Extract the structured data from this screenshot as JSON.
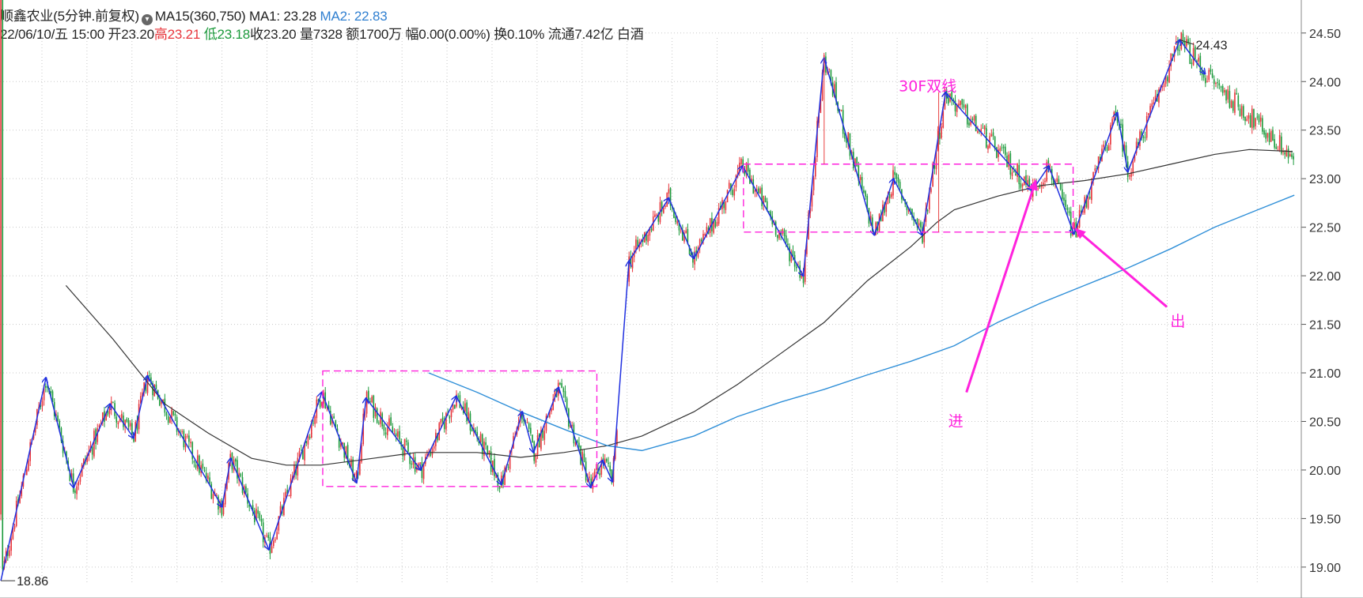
{
  "header": {
    "stock_name": "顺鑫农业",
    "period": "(5分钟.前复权)",
    "ma15_label": "MA15(360,750)",
    "ma1_label": "MA1: 23.28",
    "ma2_label": "MA2: 22.83",
    "date": "22/06/10/五 15:00",
    "open": "开23.20",
    "high": "高23.21",
    "low": "低23.18",
    "close": "收23.20",
    "volume": "量7328",
    "amount": "额1700万",
    "range": "幅0.00(0.00%)",
    "turnover": "换0.10%",
    "float_cap": "流通7.42亿",
    "sector": "白酒"
  },
  "colors": {
    "up": "#e8333a",
    "down": "#1b9a3b",
    "ma1": "#333333",
    "ma2": "#2f8fd8",
    "zigzag": "#2030e0",
    "annotation": "#ff22dd",
    "grid": "#c8c8c8"
  },
  "chart_data": {
    "type": "candlestick",
    "y_axis": {
      "side": "right",
      "ticks": [
        "24.50",
        "24.00",
        "23.50",
        "23.00",
        "22.50",
        "22.00",
        "21.50",
        "21.00",
        "20.50",
        "20.00",
        "19.50",
        "19.00"
      ],
      "range": [
        18.82,
        24.84
      ],
      "grid": "dotted"
    },
    "extremes": [
      {
        "label": "24.43",
        "value": 24.43,
        "bar": 1360
      },
      {
        "label": "18.86",
        "value": 18.86,
        "bar": 1
      }
    ],
    "zigzag": [
      [
        1,
        18.86
      ],
      [
        53,
        20.95
      ],
      [
        85,
        19.82
      ],
      [
        127,
        20.68
      ],
      [
        154,
        20.33
      ],
      [
        170,
        20.97
      ],
      [
        256,
        19.62
      ],
      [
        266,
        20.12
      ],
      [
        310,
        19.18
      ],
      [
        371,
        20.8
      ],
      [
        411,
        19.87
      ],
      [
        422,
        20.74
      ],
      [
        485,
        20.0
      ],
      [
        526,
        20.76
      ],
      [
        578,
        19.85
      ],
      [
        602,
        20.6
      ],
      [
        615,
        20.18
      ],
      [
        644,
        20.85
      ],
      [
        681,
        19.82
      ],
      [
        695,
        20.1
      ],
      [
        706,
        19.88
      ],
      [
        725,
        22.15
      ],
      [
        771,
        22.8
      ],
      [
        800,
        22.18
      ],
      [
        856,
        23.13
      ],
      [
        926,
        22.0
      ],
      [
        950,
        24.24
      ],
      [
        1008,
        22.42
      ],
      [
        1030,
        23.0
      ],
      [
        1063,
        22.42
      ],
      [
        1090,
        23.89
      ],
      [
        1190,
        22.88
      ],
      [
        1209,
        23.13
      ],
      [
        1238,
        22.43
      ],
      [
        1288,
        23.68
      ],
      [
        1300,
        23.07
      ],
      [
        1360,
        24.43
      ],
      [
        1389,
        24.08
      ]
    ],
    "ma1": [
      [
        76,
        21.9
      ],
      [
        130,
        21.35
      ],
      [
        190,
        20.68
      ],
      [
        240,
        20.38
      ],
      [
        290,
        20.12
      ],
      [
        330,
        20.05
      ],
      [
        370,
        20.05
      ],
      [
        430,
        20.12
      ],
      [
        480,
        20.18
      ],
      [
        550,
        20.18
      ],
      [
        600,
        20.13
      ],
      [
        650,
        20.18
      ],
      [
        700,
        20.25
      ],
      [
        740,
        20.35
      ],
      [
        800,
        20.6
      ],
      [
        850,
        20.88
      ],
      [
        900,
        21.2
      ],
      [
        950,
        21.52
      ],
      [
        1000,
        21.95
      ],
      [
        1050,
        22.3
      ],
      [
        1080,
        22.55
      ],
      [
        1100,
        22.68
      ],
      [
        1150,
        22.82
      ],
      [
        1200,
        22.93
      ],
      [
        1250,
        22.98
      ],
      [
        1300,
        23.05
      ],
      [
        1350,
        23.15
      ],
      [
        1400,
        23.25
      ],
      [
        1440,
        23.3
      ],
      [
        1490,
        23.28
      ]
    ],
    "ma2": [
      [
        494,
        21.0
      ],
      [
        550,
        20.8
      ],
      [
        600,
        20.6
      ],
      [
        650,
        20.42
      ],
      [
        700,
        20.25
      ],
      [
        740,
        20.2
      ],
      [
        800,
        20.35
      ],
      [
        850,
        20.55
      ],
      [
        900,
        20.7
      ],
      [
        950,
        20.83
      ],
      [
        1000,
        20.98
      ],
      [
        1050,
        21.12
      ],
      [
        1100,
        21.28
      ],
      [
        1150,
        21.52
      ],
      [
        1200,
        21.72
      ],
      [
        1250,
        21.9
      ],
      [
        1300,
        22.08
      ],
      [
        1350,
        22.28
      ],
      [
        1400,
        22.5
      ],
      [
        1450,
        22.68
      ],
      [
        1492,
        22.83
      ]
    ],
    "boxes": [
      {
        "from": 372,
        "to": 688,
        "high": 21.02,
        "low": 19.83
      },
      {
        "from": 857,
        "to": 1237,
        "high": 23.15,
        "low": 22.45
      }
    ],
    "box_vlines": [
      {
        "bar": 950,
        "from": 23.15,
        "to": 24.24
      },
      {
        "bar": 1082,
        "from": 22.45,
        "to": 23.89
      }
    ],
    "annotations": [
      {
        "text": "30F双线",
        "bar": 1036,
        "value": 23.9
      },
      {
        "text": "进",
        "bar": 1093,
        "value": 20.45
      },
      {
        "text": "出",
        "bar": 1349,
        "value": 21.48
      }
    ],
    "arrows": [
      {
        "from": [
          1114,
          20.8
        ],
        "to": [
          1194,
          22.98
        ]
      },
      {
        "from": [
          1345,
          21.68
        ],
        "to": [
          1240,
          22.48
        ]
      }
    ],
    "candles": {
      "count": 750,
      "series_from": 0,
      "series_to": 1492,
      "open": 19.55,
      "close": 23.2,
      "high": 24.43,
      "low": 18.86
    },
    "last_bar": {
      "date": "22/06/10",
      "time": "15:00",
      "open": 23.2,
      "high": 23.21,
      "low": 23.18,
      "close": 23.2
    }
  }
}
